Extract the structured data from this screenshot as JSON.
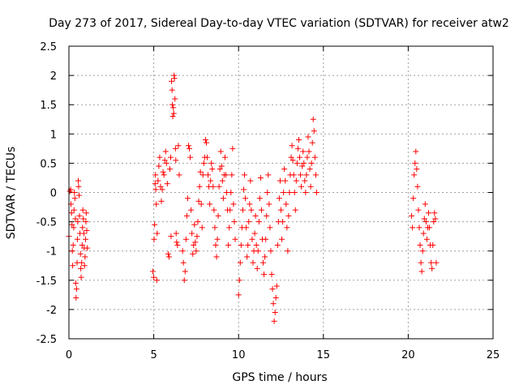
{
  "chart_data": {
    "type": "scatter",
    "title": "Day 273 of 2017, Sidereal Day-to-day VTEC variation (SDTVAR) for receiver atw2",
    "xlabel": "GPS time / hours",
    "ylabel": "SDTVAR / TECUs",
    "xlim": [
      0,
      25
    ],
    "ylim": [
      -2.5,
      2.5
    ],
    "x_ticks": [
      0,
      5,
      10,
      15,
      20,
      25
    ],
    "x_tick_labels": [
      "0",
      "5",
      "10",
      "15",
      "20",
      "25"
    ],
    "y_ticks": [
      2.5,
      2,
      1.5,
      1,
      0.5,
      0,
      -0.5,
      -1,
      -1.5,
      -2,
      -2.5
    ],
    "y_tick_labels": [
      "2.5",
      "2",
      "1.5",
      "1",
      "0.5",
      "0",
      "-0.5",
      "-1",
      "-1.5",
      "-2",
      "-2.5"
    ],
    "grid": true,
    "marker": "+",
    "color": "#ff0000",
    "series": [
      {
        "name": "SDTVAR",
        "points": [
          [
            0.0,
            -0.75
          ],
          [
            0.05,
            0.02
          ],
          [
            0.1,
            0.05
          ],
          [
            0.12,
            -0.2
          ],
          [
            0.15,
            -0.35
          ],
          [
            0.18,
            -0.55
          ],
          [
            0.2,
            -1.0
          ],
          [
            0.22,
            -1.25
          ],
          [
            0.25,
            -0.9
          ],
          [
            0.28,
            -0.6
          ],
          [
            0.3,
            -0.3
          ],
          [
            0.32,
            0.0
          ],
          [
            0.35,
            -0.1
          ],
          [
            0.38,
            -0.45
          ],
          [
            0.4,
            -1.55
          ],
          [
            0.42,
            -1.8
          ],
          [
            0.45,
            -1.65
          ],
          [
            0.48,
            -1.2
          ],
          [
            0.5,
            -0.8
          ],
          [
            0.52,
            -0.5
          ],
          [
            0.55,
            0.2
          ],
          [
            0.57,
            0.1
          ],
          [
            0.6,
            -0.05
          ],
          [
            0.62,
            -0.4
          ],
          [
            0.65,
            -0.7
          ],
          [
            0.68,
            -1.05
          ],
          [
            0.7,
            -1.3
          ],
          [
            0.72,
            -1.45
          ],
          [
            0.75,
            -1.2
          ],
          [
            0.78,
            -0.9
          ],
          [
            0.8,
            -0.6
          ],
          [
            0.82,
            -0.3
          ],
          [
            0.85,
            -0.45
          ],
          [
            0.88,
            -0.7
          ],
          [
            0.9,
            -0.95
          ],
          [
            0.92,
            -1.25
          ],
          [
            0.95,
            -1.1
          ],
          [
            0.98,
            -0.8
          ],
          [
            1.0,
            -0.5
          ],
          [
            1.02,
            -0.35
          ],
          [
            1.05,
            -0.65
          ],
          [
            1.08,
            -0.95
          ],
          [
            4.95,
            -1.35
          ],
          [
            5.0,
            -1.45
          ],
          [
            5.02,
            -0.8
          ],
          [
            5.05,
            -0.55
          ],
          [
            5.08,
            0.15
          ],
          [
            5.1,
            0.3
          ],
          [
            5.12,
            0.05
          ],
          [
            5.15,
            -0.2
          ],
          [
            5.18,
            -1.5
          ],
          [
            5.2,
            -0.7
          ],
          [
            5.25,
            0.2
          ],
          [
            5.3,
            0.45
          ],
          [
            5.35,
            0.6
          ],
          [
            5.4,
            0.1
          ],
          [
            5.45,
            -0.15
          ],
          [
            5.5,
            0.05
          ],
          [
            5.55,
            0.35
          ],
          [
            5.6,
            0.3
          ],
          [
            5.65,
            0.55
          ],
          [
            5.7,
            0.7
          ],
          [
            5.75,
            0.5
          ],
          [
            5.8,
            0.15
          ],
          [
            5.85,
            -1.05
          ],
          [
            5.9,
            -1.1
          ],
          [
            5.95,
            0.4
          ],
          [
            6.0,
            0.6
          ],
          [
            6.02,
            -0.75
          ],
          [
            6.05,
            1.9
          ],
          [
            6.08,
            1.75
          ],
          [
            6.1,
            1.5
          ],
          [
            6.12,
            1.3
          ],
          [
            6.15,
            1.45
          ],
          [
            6.18,
            1.35
          ],
          [
            6.2,
            2.0
          ],
          [
            6.22,
            1.95
          ],
          [
            6.25,
            1.6
          ],
          [
            6.28,
            0.75
          ],
          [
            6.3,
            0.55
          ],
          [
            6.32,
            -0.7
          ],
          [
            6.35,
            -0.85
          ],
          [
            6.4,
            -0.9
          ],
          [
            6.45,
            0.8
          ],
          [
            6.5,
            0.3
          ],
          [
            6.7,
            -1.0
          ],
          [
            6.75,
            -1.2
          ],
          [
            6.8,
            -1.5
          ],
          [
            6.85,
            -1.35
          ],
          [
            6.9,
            -0.8
          ],
          [
            6.95,
            -0.4
          ],
          [
            7.0,
            -0.1
          ],
          [
            7.05,
            0.8
          ],
          [
            7.1,
            0.75
          ],
          [
            7.15,
            0.6
          ],
          [
            7.2,
            -0.3
          ],
          [
            7.25,
            -0.7
          ],
          [
            7.3,
            -1.05
          ],
          [
            7.35,
            -0.9
          ],
          [
            7.4,
            -0.55
          ],
          [
            7.45,
            -0.85
          ],
          [
            7.5,
            -1.0
          ],
          [
            7.55,
            -0.75
          ],
          [
            7.6,
            -0.5
          ],
          [
            7.65,
            -0.15
          ],
          [
            7.7,
            0.1
          ],
          [
            7.75,
            0.35
          ],
          [
            7.8,
            -0.2
          ],
          [
            7.85,
            -0.6
          ],
          [
            7.9,
            0.3
          ],
          [
            7.95,
            0.5
          ],
          [
            8.0,
            0.6
          ],
          [
            8.05,
            0.9
          ],
          [
            8.1,
            0.85
          ],
          [
            8.15,
            0.6
          ],
          [
            8.2,
            0.3
          ],
          [
            8.25,
            0.1
          ],
          [
            8.3,
            -0.2
          ],
          [
            8.35,
            0.2
          ],
          [
            8.4,
            0.5
          ],
          [
            8.45,
            0.4
          ],
          [
            8.5,
            0.1
          ],
          [
            8.55,
            -0.3
          ],
          [
            8.6,
            -0.6
          ],
          [
            8.65,
            -0.9
          ],
          [
            8.7,
            -1.1
          ],
          [
            8.75,
            -0.8
          ],
          [
            8.8,
            -0.4
          ],
          [
            8.85,
            0.1
          ],
          [
            8.9,
            0.4
          ],
          [
            8.95,
            0.7
          ],
          [
            9.0,
            0.45
          ],
          [
            9.05,
            0.2
          ],
          [
            9.1,
            -0.1
          ],
          [
            9.15,
            0.3
          ],
          [
            9.2,
            0.6
          ],
          [
            9.25,
            0.3
          ],
          [
            9.3,
            0.0
          ],
          [
            9.35,
            -0.3
          ],
          [
            9.4,
            -0.9
          ],
          [
            9.45,
            -0.6
          ],
          [
            9.5,
            -0.3
          ],
          [
            9.55,
            0.0
          ],
          [
            9.6,
            0.3
          ],
          [
            9.65,
            0.75
          ],
          [
            9.7,
            -0.2
          ],
          [
            9.75,
            -0.5
          ],
          [
            9.8,
            -0.8
          ],
          [
            10.0,
            -1.75
          ],
          [
            10.05,
            -1.5
          ],
          [
            10.1,
            -1.2
          ],
          [
            10.15,
            -0.9
          ],
          [
            10.2,
            -0.6
          ],
          [
            10.25,
            -0.3
          ],
          [
            10.3,
            0.05
          ],
          [
            10.35,
            0.3
          ],
          [
            10.4,
            -0.1
          ],
          [
            10.45,
            -0.6
          ],
          [
            10.5,
            -1.1
          ],
          [
            10.55,
            -0.9
          ],
          [
            10.6,
            -0.5
          ],
          [
            10.65,
            -0.2
          ],
          [
            10.7,
            0.2
          ],
          [
            10.75,
            -0.3
          ],
          [
            10.8,
            -0.8
          ],
          [
            10.85,
            -1.2
          ],
          [
            10.9,
            -1.0
          ],
          [
            10.95,
            -0.7
          ],
          [
            11.0,
            -0.4
          ],
          [
            11.05,
            -0.9
          ],
          [
            11.1,
            -1.3
          ],
          [
            11.15,
            -1.0
          ],
          [
            11.2,
            -0.5
          ],
          [
            11.25,
            -0.1
          ],
          [
            11.3,
            0.25
          ],
          [
            11.35,
            -0.3
          ],
          [
            11.4,
            -0.8
          ],
          [
            11.45,
            -1.2
          ],
          [
            11.5,
            -1.4
          ],
          [
            11.55,
            -1.1
          ],
          [
            11.6,
            -0.8
          ],
          [
            11.65,
            -0.4
          ],
          [
            11.7,
            0.0
          ],
          [
            11.75,
            0.3
          ],
          [
            11.8,
            -0.2
          ],
          [
            11.85,
            -0.6
          ],
          [
            11.9,
            -1.0
          ],
          [
            11.95,
            -1.4
          ],
          [
            12.0,
            -1.65
          ],
          [
            12.05,
            -1.9
          ],
          [
            12.1,
            -2.2
          ],
          [
            12.15,
            -2.05
          ],
          [
            12.2,
            -1.8
          ],
          [
            12.25,
            -1.6
          ],
          [
            12.3,
            -0.9
          ],
          [
            12.35,
            -0.5
          ],
          [
            12.4,
            -0.1
          ],
          [
            12.45,
            0.2
          ],
          [
            12.5,
            -0.3
          ],
          [
            12.55,
            -0.8
          ],
          [
            12.6,
            -0.5
          ],
          [
            12.65,
            0.0
          ],
          [
            12.7,
            0.4
          ],
          [
            12.75,
            0.2
          ],
          [
            12.8,
            -0.2
          ],
          [
            12.85,
            -0.6
          ],
          [
            12.9,
            -1.0
          ],
          [
            12.95,
            -0.4
          ],
          [
            13.0,
            0.0
          ],
          [
            13.05,
            0.3
          ],
          [
            13.1,
            0.6
          ],
          [
            13.15,
            0.8
          ],
          [
            13.2,
            0.55
          ],
          [
            13.25,
            0.3
          ],
          [
            13.3,
            0.0
          ],
          [
            13.35,
            -0.3
          ],
          [
            13.4,
            0.2
          ],
          [
            13.45,
            0.5
          ],
          [
            13.5,
            0.75
          ],
          [
            13.55,
            0.9
          ],
          [
            13.6,
            0.6
          ],
          [
            13.65,
            0.3
          ],
          [
            13.7,
            0.1
          ],
          [
            13.75,
            0.45
          ],
          [
            13.8,
            0.7
          ],
          [
            13.85,
            0.5
          ],
          [
            13.9,
            0.2
          ],
          [
            13.95,
            0.0
          ],
          [
            14.0,
            0.3
          ],
          [
            14.05,
            0.6
          ],
          [
            14.1,
            0.95
          ],
          [
            14.15,
            0.7
          ],
          [
            14.2,
            0.4
          ],
          [
            14.25,
            0.1
          ],
          [
            14.3,
            0.5
          ],
          [
            14.35,
            0.85
          ],
          [
            14.4,
            1.25
          ],
          [
            14.45,
            1.05
          ],
          [
            14.5,
            0.6
          ],
          [
            14.55,
            0.3
          ],
          [
            14.6,
            0.0
          ],
          [
            20.2,
            -0.4
          ],
          [
            20.25,
            -0.6
          ],
          [
            20.3,
            -0.1
          ],
          [
            20.35,
            0.3
          ],
          [
            20.4,
            0.5
          ],
          [
            20.45,
            0.7
          ],
          [
            20.5,
            0.4
          ],
          [
            20.55,
            0.1
          ],
          [
            20.6,
            -0.3
          ],
          [
            20.65,
            -0.6
          ],
          [
            20.7,
            -0.9
          ],
          [
            20.75,
            -1.2
          ],
          [
            20.8,
            -1.35
          ],
          [
            20.85,
            -1.0
          ],
          [
            20.9,
            -0.7
          ],
          [
            20.95,
            -0.45
          ],
          [
            21.0,
            -0.2
          ],
          [
            21.05,
            -0.5
          ],
          [
            21.1,
            -0.8
          ],
          [
            21.15,
            -0.6
          ],
          [
            21.2,
            -0.35
          ],
          [
            21.25,
            -0.6
          ],
          [
            21.3,
            -0.9
          ],
          [
            21.35,
            -1.2
          ],
          [
            21.4,
            -1.3
          ],
          [
            21.45,
            -0.9
          ],
          [
            21.5,
            -0.5
          ],
          [
            21.55,
            -0.35
          ],
          [
            21.6,
            -0.45
          ],
          [
            21.65,
            -1.2
          ]
        ]
      }
    ]
  }
}
